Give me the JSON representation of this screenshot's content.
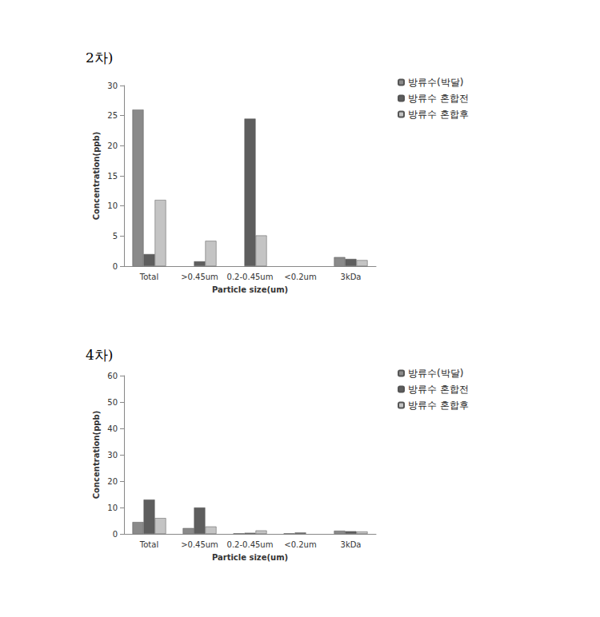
{
  "chart_data": [
    {
      "type": "bar",
      "title": "2차)",
      "x_label": "Particle size(um)",
      "y_label": "Concentration(ppb)",
      "categories": [
        "Total",
        ">0.45um",
        "0.2-0.45um",
        "<0.2um",
        "3kDa"
      ],
      "series": [
        {
          "name": "방류수(박달)",
          "color": "#8a8a8a",
          "values": [
            26,
            null,
            null,
            null,
            1.5
          ]
        },
        {
          "name": "방류수 혼합전",
          "color": "#5e5e5e",
          "values": [
            2,
            0.8,
            24.5,
            null,
            1.2
          ]
        },
        {
          "name": "방류수 혼합후",
          "color": "#c4c4c4",
          "values": [
            11,
            4.2,
            5.1,
            null,
            1.0
          ]
        }
      ],
      "ylim": [
        0,
        30
      ],
      "yticks": [
        0,
        5,
        10,
        15,
        20,
        25,
        30
      ],
      "grid": false,
      "legend": "right"
    },
    {
      "type": "bar",
      "title": "4차)",
      "x_label": "Particle size(um)",
      "y_label": "Concentration(ppb)",
      "categories": [
        "Total",
        ">0.45um",
        "0.2-0.45um",
        "<0.2um",
        "3kDa"
      ],
      "series": [
        {
          "name": "방류수(박달)",
          "color": "#8a8a8a",
          "values": [
            4.5,
            2.2,
            0.2,
            0.2,
            1.2
          ]
        },
        {
          "name": "방류수 혼합전",
          "color": "#5e5e5e",
          "values": [
            13,
            10,
            0.4,
            0.5,
            1.0
          ]
        },
        {
          "name": "방류수 혼합후",
          "color": "#c4c4c4",
          "values": [
            6,
            2.8,
            1.3,
            null,
            0.9
          ]
        }
      ],
      "ylim": [
        0,
        60
      ],
      "yticks": [
        0,
        10,
        20,
        30,
        40,
        50,
        60
      ],
      "grid": false,
      "legend": "right"
    }
  ]
}
